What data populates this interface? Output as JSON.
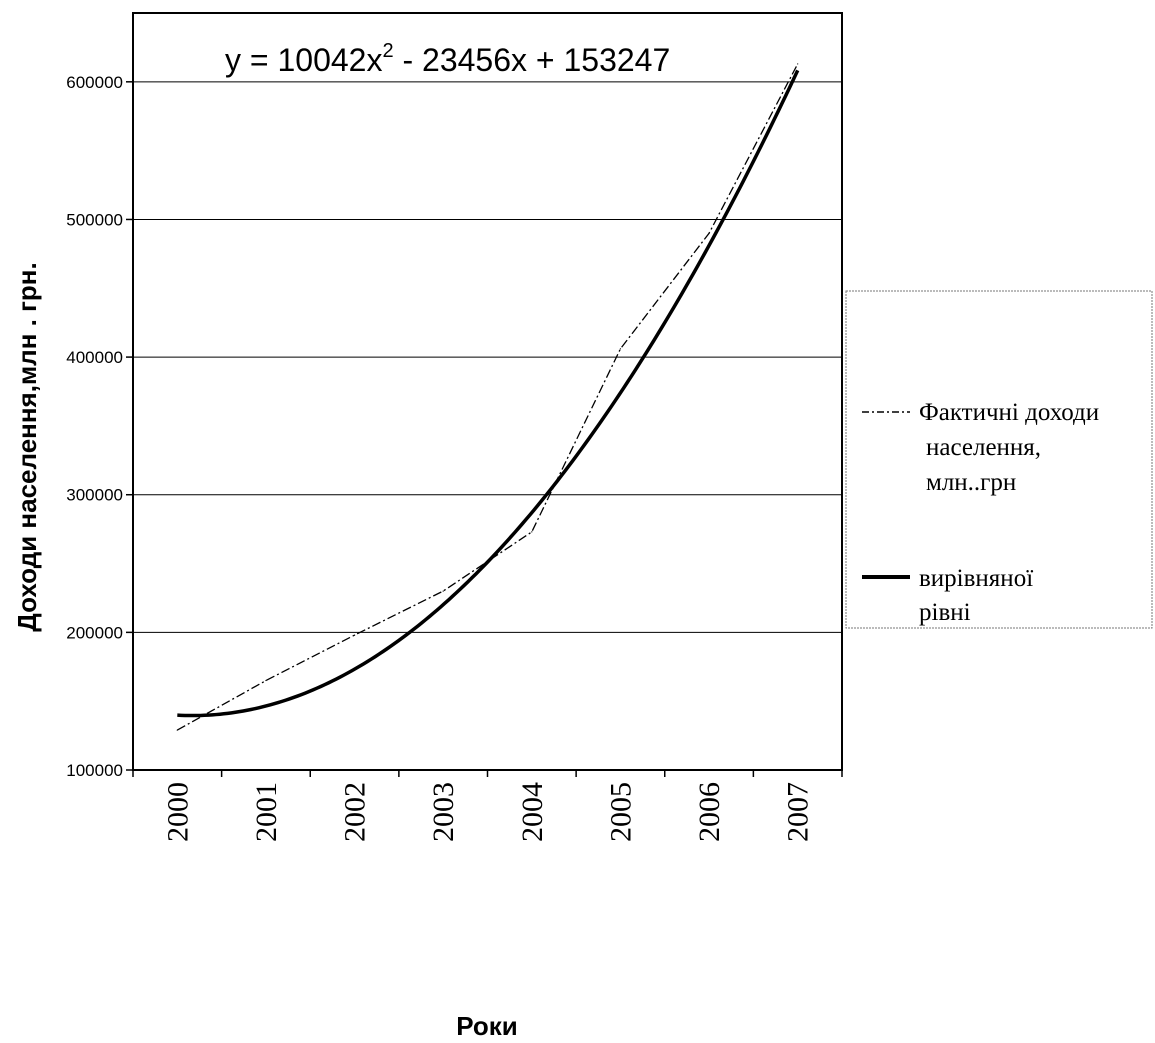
{
  "chart_data": {
    "type": "line",
    "x": [
      2000,
      2001,
      2002,
      2003,
      2004,
      2005,
      2006,
      2007
    ],
    "series": [
      {
        "name": "Фактичні доходи населення, млн..грн",
        "style": "dash-dot",
        "x": [
          2000,
          2001,
          2002,
          2003,
          2004,
          2005,
          2006,
          2007
        ],
        "values": [
          129000,
          165000,
          198000,
          230000,
          273000,
          406000,
          490000,
          613000
        ]
      },
      {
        "name": "вирівняної рівні",
        "style": "solid-thick",
        "equation": {
          "a": 10042,
          "b": -23456,
          "c": 153247
        }
      }
    ],
    "equation_label": "y = 10042x",
    "equation_exponent": "2",
    "equation_rest": " - 23456x + 153247",
    "ylabel": "Доходи населення,млн . грн.",
    "xlabel": "Роки",
    "ylim": [
      100000,
      650000
    ],
    "yticks": [
      100000,
      200000,
      300000,
      400000,
      500000,
      600000
    ],
    "ytick_labels": [
      "100000",
      "200000",
      "300000",
      "400000",
      "500000",
      "600000"
    ],
    "xtick_labels": [
      "2000",
      "2001",
      "2002",
      "2003",
      "2004",
      "2005",
      "2006",
      "2007"
    ],
    "grid": true,
    "legend": {
      "position": "right",
      "items": [
        {
          "lines": [
            "Фактичні доходи",
            "населення,",
            "млн..грн"
          ]
        },
        {
          "lines": [
            "вирівняної",
            "рівні"
          ]
        }
      ]
    },
    "colors": {
      "line": "#000000",
      "grid": "#000000",
      "legend_border": "#777777"
    }
  }
}
